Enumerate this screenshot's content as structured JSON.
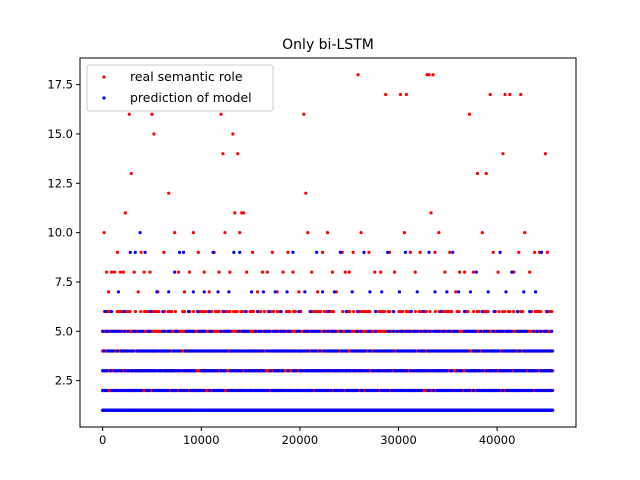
{
  "chart_data": {
    "type": "scatter",
    "title": "Only bi-LSTM",
    "xlabel": "",
    "ylabel": "",
    "xlim": [
      -2300,
      48000
    ],
    "ylim": [
      0.15,
      18.85
    ],
    "xticks": [
      0,
      10000,
      20000,
      30000,
      40000
    ],
    "xtick_labels": [
      "0",
      "10000",
      "20000",
      "30000",
      "40000"
    ],
    "yticks": [
      2.5,
      5.0,
      7.5,
      10.0,
      12.5,
      15.0,
      17.5
    ],
    "ytick_labels": [
      "2.5",
      "5.0",
      "7.5",
      "10.0",
      "12.5",
      "15.0",
      "17.5"
    ],
    "grid": false,
    "legend_position": "top-left",
    "x_count": 45700,
    "dense_levels": [
      1,
      2,
      3,
      4,
      5
    ],
    "series": [
      {
        "name": "real semantic role",
        "color": "#ff0000",
        "dense_levels": [
          1,
          2,
          3,
          4,
          5,
          6
        ],
        "points": [
          [
            150,
            10
          ],
          [
            400,
            8
          ],
          [
            600,
            7
          ],
          [
            900,
            8
          ],
          [
            1200,
            8
          ],
          [
            1500,
            9
          ],
          [
            1800,
            8
          ],
          [
            2100,
            8
          ],
          [
            2300,
            11
          ],
          [
            2700,
            16
          ],
          [
            2900,
            13
          ],
          [
            3200,
            8
          ],
          [
            3600,
            7
          ],
          [
            3900,
            9
          ],
          [
            4200,
            8
          ],
          [
            4800,
            8
          ],
          [
            5000,
            16
          ],
          [
            5200,
            15
          ],
          [
            5600,
            7
          ],
          [
            6200,
            9
          ],
          [
            6700,
            12
          ],
          [
            7300,
            10
          ],
          [
            7700,
            8
          ],
          [
            8300,
            7
          ],
          [
            8800,
            8
          ],
          [
            9200,
            10
          ],
          [
            9700,
            9
          ],
          [
            10300,
            8
          ],
          [
            10800,
            7
          ],
          [
            11300,
            9
          ],
          [
            11800,
            8
          ],
          [
            12000,
            16
          ],
          [
            12200,
            14
          ],
          [
            12400,
            10
          ],
          [
            12900,
            8
          ],
          [
            13200,
            15
          ],
          [
            13400,
            11
          ],
          [
            13700,
            14
          ],
          [
            13900,
            10
          ],
          [
            14100,
            11
          ],
          [
            14300,
            11
          ],
          [
            14600,
            8
          ],
          [
            15200,
            9
          ],
          [
            15700,
            7
          ],
          [
            16200,
            8
          ],
          [
            16700,
            8
          ],
          [
            17200,
            9
          ],
          [
            17700,
            7
          ],
          [
            18300,
            8
          ],
          [
            18800,
            9
          ],
          [
            19300,
            8
          ],
          [
            19900,
            7
          ],
          [
            20400,
            16
          ],
          [
            20600,
            12
          ],
          [
            20800,
            10
          ],
          [
            21200,
            8
          ],
          [
            21800,
            7
          ],
          [
            22300,
            9
          ],
          [
            22800,
            10
          ],
          [
            23300,
            8
          ],
          [
            23700,
            7
          ],
          [
            24300,
            9
          ],
          [
            24600,
            8
          ],
          [
            25000,
            8
          ],
          [
            25400,
            9
          ],
          [
            25900,
            18
          ],
          [
            26200,
            10
          ],
          [
            26500,
            9
          ],
          [
            27000,
            9
          ],
          [
            27600,
            8
          ],
          [
            28200,
            8
          ],
          [
            28700,
            17
          ],
          [
            29100,
            9
          ],
          [
            29600,
            8
          ],
          [
            30200,
            17
          ],
          [
            30600,
            10
          ],
          [
            30800,
            17
          ],
          [
            31200,
            9
          ],
          [
            31700,
            8
          ],
          [
            32200,
            9
          ],
          [
            32900,
            18
          ],
          [
            33100,
            18
          ],
          [
            33300,
            11
          ],
          [
            33500,
            18
          ],
          [
            33700,
            9
          ],
          [
            34100,
            10
          ],
          [
            34700,
            8
          ],
          [
            35200,
            9
          ],
          [
            35800,
            7
          ],
          [
            36200,
            8
          ],
          [
            36700,
            8
          ],
          [
            37200,
            16
          ],
          [
            37600,
            8
          ],
          [
            38000,
            13
          ],
          [
            38500,
            10
          ],
          [
            38900,
            13
          ],
          [
            39300,
            17
          ],
          [
            39600,
            9
          ],
          [
            40100,
            8
          ],
          [
            40600,
            14
          ],
          [
            40800,
            17
          ],
          [
            41300,
            17
          ],
          [
            41700,
            8
          ],
          [
            42200,
            9
          ],
          [
            42400,
            17
          ],
          [
            42800,
            10
          ],
          [
            43300,
            8
          ],
          [
            43800,
            9
          ],
          [
            44300,
            9
          ],
          [
            44900,
            14
          ],
          [
            45100,
            9
          ]
        ]
      },
      {
        "name": "prediction of model",
        "color": "#0000ff",
        "dense_levels": [
          1,
          2,
          3,
          4,
          5
        ],
        "points": [
          [
            300,
            6
          ],
          [
            900,
            6
          ],
          [
            1600,
            7
          ],
          [
            2200,
            6
          ],
          [
            2800,
            9
          ],
          [
            3300,
            9
          ],
          [
            3800,
            10
          ],
          [
            4300,
            9
          ],
          [
            4900,
            6
          ],
          [
            5500,
            7
          ],
          [
            6100,
            6
          ],
          [
            6700,
            7
          ],
          [
            7300,
            8
          ],
          [
            7800,
            9
          ],
          [
            8200,
            9
          ],
          [
            8700,
            6
          ],
          [
            9200,
            7
          ],
          [
            9700,
            6
          ],
          [
            10300,
            7
          ],
          [
            10800,
            6
          ],
          [
            11200,
            9
          ],
          [
            11700,
            7
          ],
          [
            12300,
            6
          ],
          [
            12800,
            7
          ],
          [
            13300,
            9
          ],
          [
            13900,
            9
          ],
          [
            14500,
            6
          ],
          [
            15100,
            7
          ],
          [
            15700,
            6
          ],
          [
            16300,
            7
          ],
          [
            16900,
            6
          ],
          [
            17500,
            7
          ],
          [
            18100,
            6
          ],
          [
            18700,
            7
          ],
          [
            19300,
            9
          ],
          [
            19900,
            6
          ],
          [
            20500,
            7
          ],
          [
            21100,
            6
          ],
          [
            21700,
            9
          ],
          [
            22300,
            7
          ],
          [
            22900,
            6
          ],
          [
            23500,
            7
          ],
          [
            24100,
            9
          ],
          [
            24700,
            6
          ],
          [
            25300,
            7
          ],
          [
            25900,
            6
          ],
          [
            26500,
            9
          ],
          [
            27100,
            7
          ],
          [
            27700,
            6
          ],
          [
            28300,
            7
          ],
          [
            28900,
            9
          ],
          [
            29500,
            6
          ],
          [
            30100,
            7
          ],
          [
            30700,
            9
          ],
          [
            31300,
            6
          ],
          [
            31900,
            7
          ],
          [
            32500,
            6
          ],
          [
            33100,
            9
          ],
          [
            33700,
            7
          ],
          [
            34300,
            6
          ],
          [
            34900,
            7
          ],
          [
            35500,
            9
          ],
          [
            36100,
            7
          ],
          [
            36700,
            6
          ],
          [
            37300,
            7
          ],
          [
            37900,
            8
          ],
          [
            38500,
            6
          ],
          [
            39100,
            7
          ],
          [
            39700,
            6
          ],
          [
            40300,
            9
          ],
          [
            40900,
            7
          ],
          [
            41500,
            8
          ],
          [
            42100,
            6
          ],
          [
            42700,
            7
          ],
          [
            43300,
            6
          ],
          [
            43900,
            7
          ],
          [
            44500,
            9
          ],
          [
            45100,
            6
          ]
        ]
      }
    ]
  }
}
